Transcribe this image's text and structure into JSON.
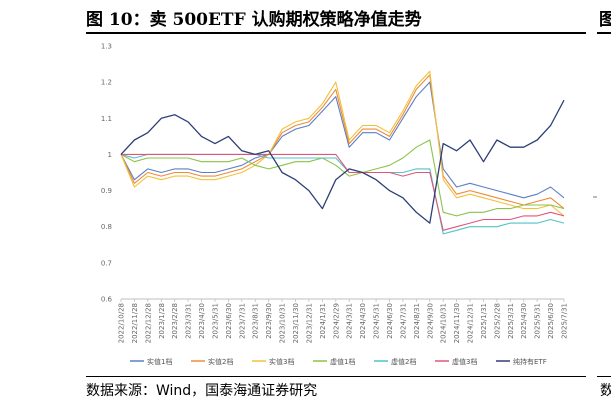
{
  "figure": {
    "title": "图 10：卖 500ETF 认购期权策略净值走势",
    "side_title": "图",
    "source": "数据来源：Wind，国泰海通证券研究",
    "side_source": "数"
  },
  "chart_data": {
    "type": "line",
    "title": "",
    "xlabel": "",
    "ylabel": "",
    "ylim": [
      0.6,
      1.3
    ],
    "yticks": [
      "0.6",
      "0.7",
      "0.8",
      "0.9",
      "1",
      "1.1",
      "1.2",
      "1.3"
    ],
    "x_ticks": [
      "2022/10/28",
      "2022/11/28",
      "2022/12/28",
      "2023/1/28",
      "2023/2/28",
      "2023/3/31",
      "2023/4/30",
      "2023/5/31",
      "2023/6/30",
      "2023/7/31",
      "2023/8/31",
      "2023/9/30",
      "2023/10/31",
      "2023/11/30",
      "2023/12/31",
      "2024/1/31",
      "2024/2/29",
      "2024/3/31",
      "2024/4/30",
      "2024/5/31",
      "2024/6/30",
      "2024/7/31",
      "2024/8/31",
      "2024/9/30",
      "2024/10/31",
      "2024/11/30",
      "2024/12/31",
      "2025/1/31",
      "2025/2/28",
      "2025/3/31",
      "2025/4/30",
      "2025/5/31",
      "2025/6/30",
      "2025/7/31"
    ],
    "grid": false,
    "legend_position": "bottom",
    "series": [
      {
        "name": "实值1档",
        "color": "#5b7fc6",
        "values": [
          1.0,
          0.93,
          0.96,
          0.95,
          0.96,
          0.96,
          0.95,
          0.95,
          0.96,
          0.97,
          0.99,
          1.0,
          1.05,
          1.07,
          1.08,
          1.12,
          1.16,
          1.02,
          1.06,
          1.06,
          1.04,
          1.1,
          1.16,
          1.2,
          0.96,
          0.91,
          0.92,
          0.91,
          0.9,
          0.89,
          0.88,
          0.89,
          0.91,
          0.88
        ]
      },
      {
        "name": "实值2档",
        "color": "#ef8a3a",
        "values": [
          1.0,
          0.92,
          0.95,
          0.94,
          0.95,
          0.95,
          0.94,
          0.94,
          0.95,
          0.96,
          0.98,
          1.0,
          1.06,
          1.08,
          1.09,
          1.13,
          1.18,
          1.03,
          1.07,
          1.07,
          1.05,
          1.11,
          1.18,
          1.22,
          0.94,
          0.89,
          0.9,
          0.89,
          0.88,
          0.87,
          0.86,
          0.87,
          0.88,
          0.85
        ]
      },
      {
        "name": "实值3档",
        "color": "#f2c13a",
        "values": [
          1.0,
          0.91,
          0.94,
          0.93,
          0.94,
          0.94,
          0.93,
          0.93,
          0.94,
          0.95,
          0.97,
          1.0,
          1.07,
          1.09,
          1.1,
          1.14,
          1.2,
          1.04,
          1.08,
          1.08,
          1.06,
          1.12,
          1.19,
          1.23,
          0.93,
          0.88,
          0.89,
          0.88,
          0.87,
          0.86,
          0.85,
          0.85,
          0.86,
          0.83
        ]
      },
      {
        "name": "虚值1档",
        "color": "#8bc34a",
        "values": [
          1.0,
          0.98,
          0.99,
          0.99,
          0.99,
          0.99,
          0.98,
          0.98,
          0.98,
          0.99,
          0.97,
          0.96,
          0.97,
          0.98,
          0.98,
          0.99,
          0.97,
          0.94,
          0.95,
          0.96,
          0.97,
          0.99,
          1.02,
          1.04,
          0.84,
          0.83,
          0.84,
          0.84,
          0.85,
          0.85,
          0.86,
          0.86,
          0.86,
          0.85
        ]
      },
      {
        "name": "虚值2档",
        "color": "#4fc3c8",
        "values": [
          1.0,
          0.99,
          1.0,
          1.0,
          1.0,
          1.0,
          1.0,
          1.0,
          1.0,
          1.0,
          1.0,
          0.99,
          0.99,
          0.99,
          0.99,
          0.99,
          0.99,
          0.95,
          0.95,
          0.95,
          0.95,
          0.95,
          0.96,
          0.96,
          0.78,
          0.79,
          0.8,
          0.8,
          0.8,
          0.81,
          0.81,
          0.81,
          0.82,
          0.81
        ]
      },
      {
        "name": "虚值3档",
        "color": "#e2557a",
        "values": [
          1.0,
          1.0,
          1.0,
          1.0,
          1.0,
          1.0,
          1.0,
          1.0,
          1.0,
          1.0,
          1.0,
          1.0,
          1.0,
          1.0,
          1.0,
          1.0,
          1.0,
          0.95,
          0.95,
          0.95,
          0.95,
          0.94,
          0.95,
          0.95,
          0.79,
          0.8,
          0.81,
          0.82,
          0.82,
          0.82,
          0.83,
          0.83,
          0.84,
          0.83
        ]
      },
      {
        "name": "纯持有ETF",
        "color": "#2e3f78",
        "values": [
          1.0,
          1.04,
          1.06,
          1.1,
          1.11,
          1.09,
          1.05,
          1.03,
          1.05,
          1.01,
          1.0,
          1.01,
          0.95,
          0.93,
          0.9,
          0.85,
          0.93,
          0.96,
          0.95,
          0.93,
          0.9,
          0.88,
          0.84,
          0.81,
          1.03,
          1.01,
          1.04,
          0.98,
          1.04,
          1.02,
          1.02,
          1.04,
          1.08,
          1.15
        ]
      }
    ]
  }
}
